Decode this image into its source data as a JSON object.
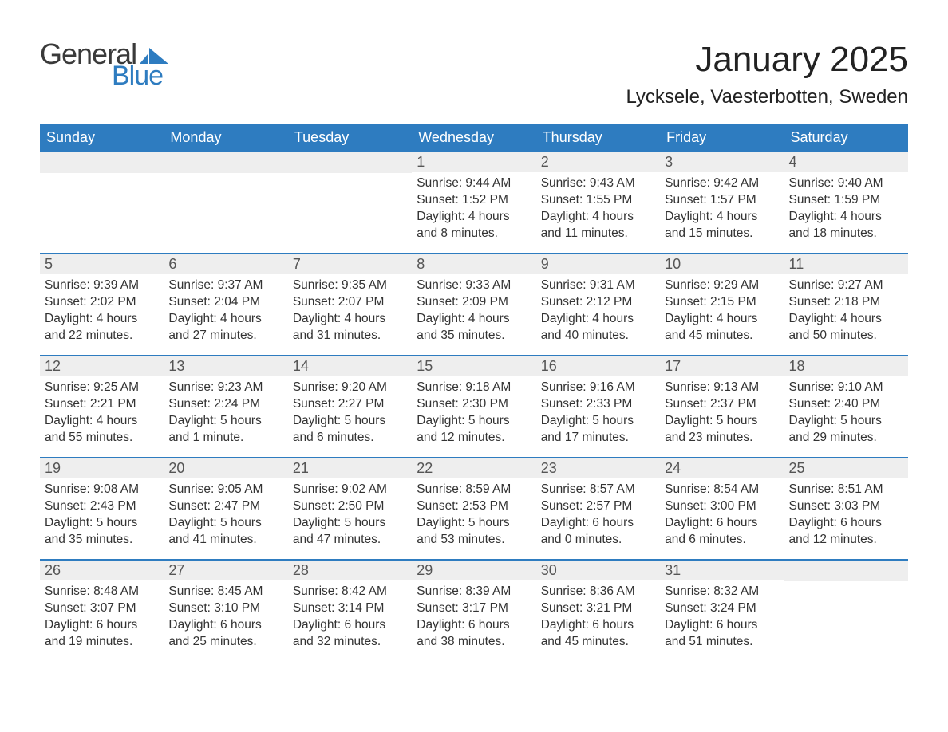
{
  "logo": {
    "word1": "General",
    "word2": "Blue",
    "mark_color": "#2e7cc0"
  },
  "title": "January 2025",
  "location": "Lycksele, Vaesterbotten, Sweden",
  "colors": {
    "header_bg": "#2e7cc0",
    "header_fg": "#ffffff",
    "daynum_bg": "#eeeeee",
    "daynum_fg": "#555555",
    "body_bg": "#ffffff",
    "text": "#333333",
    "rule": "#2e7cc0"
  },
  "typography": {
    "title_fontsize": 44,
    "location_fontsize": 24,
    "dow_fontsize": 18,
    "daynum_fontsize": 18,
    "body_fontsize": 15.5
  },
  "days_of_week": [
    "Sunday",
    "Monday",
    "Tuesday",
    "Wednesday",
    "Thursday",
    "Friday",
    "Saturday"
  ],
  "labels": {
    "sunrise": "Sunrise:",
    "sunset": "Sunset:",
    "daylight": "Daylight:"
  },
  "weeks": [
    [
      null,
      null,
      null,
      {
        "n": "1",
        "sunrise": "9:44 AM",
        "sunset": "1:52 PM",
        "daylight": "4 hours and 8 minutes."
      },
      {
        "n": "2",
        "sunrise": "9:43 AM",
        "sunset": "1:55 PM",
        "daylight": "4 hours and 11 minutes."
      },
      {
        "n": "3",
        "sunrise": "9:42 AM",
        "sunset": "1:57 PM",
        "daylight": "4 hours and 15 minutes."
      },
      {
        "n": "4",
        "sunrise": "9:40 AM",
        "sunset": "1:59 PM",
        "daylight": "4 hours and 18 minutes."
      }
    ],
    [
      {
        "n": "5",
        "sunrise": "9:39 AM",
        "sunset": "2:02 PM",
        "daylight": "4 hours and 22 minutes."
      },
      {
        "n": "6",
        "sunrise": "9:37 AM",
        "sunset": "2:04 PM",
        "daylight": "4 hours and 27 minutes."
      },
      {
        "n": "7",
        "sunrise": "9:35 AM",
        "sunset": "2:07 PM",
        "daylight": "4 hours and 31 minutes."
      },
      {
        "n": "8",
        "sunrise": "9:33 AM",
        "sunset": "2:09 PM",
        "daylight": "4 hours and 35 minutes."
      },
      {
        "n": "9",
        "sunrise": "9:31 AM",
        "sunset": "2:12 PM",
        "daylight": "4 hours and 40 minutes."
      },
      {
        "n": "10",
        "sunrise": "9:29 AM",
        "sunset": "2:15 PM",
        "daylight": "4 hours and 45 minutes."
      },
      {
        "n": "11",
        "sunrise": "9:27 AM",
        "sunset": "2:18 PM",
        "daylight": "4 hours and 50 minutes."
      }
    ],
    [
      {
        "n": "12",
        "sunrise": "9:25 AM",
        "sunset": "2:21 PM",
        "daylight": "4 hours and 55 minutes."
      },
      {
        "n": "13",
        "sunrise": "9:23 AM",
        "sunset": "2:24 PM",
        "daylight": "5 hours and 1 minute."
      },
      {
        "n": "14",
        "sunrise": "9:20 AM",
        "sunset": "2:27 PM",
        "daylight": "5 hours and 6 minutes."
      },
      {
        "n": "15",
        "sunrise": "9:18 AM",
        "sunset": "2:30 PM",
        "daylight": "5 hours and 12 minutes."
      },
      {
        "n": "16",
        "sunrise": "9:16 AM",
        "sunset": "2:33 PM",
        "daylight": "5 hours and 17 minutes."
      },
      {
        "n": "17",
        "sunrise": "9:13 AM",
        "sunset": "2:37 PM",
        "daylight": "5 hours and 23 minutes."
      },
      {
        "n": "18",
        "sunrise": "9:10 AM",
        "sunset": "2:40 PM",
        "daylight": "5 hours and 29 minutes."
      }
    ],
    [
      {
        "n": "19",
        "sunrise": "9:08 AM",
        "sunset": "2:43 PM",
        "daylight": "5 hours and 35 minutes."
      },
      {
        "n": "20",
        "sunrise": "9:05 AM",
        "sunset": "2:47 PM",
        "daylight": "5 hours and 41 minutes."
      },
      {
        "n": "21",
        "sunrise": "9:02 AM",
        "sunset": "2:50 PM",
        "daylight": "5 hours and 47 minutes."
      },
      {
        "n": "22",
        "sunrise": "8:59 AM",
        "sunset": "2:53 PM",
        "daylight": "5 hours and 53 minutes."
      },
      {
        "n": "23",
        "sunrise": "8:57 AM",
        "sunset": "2:57 PM",
        "daylight": "6 hours and 0 minutes."
      },
      {
        "n": "24",
        "sunrise": "8:54 AM",
        "sunset": "3:00 PM",
        "daylight": "6 hours and 6 minutes."
      },
      {
        "n": "25",
        "sunrise": "8:51 AM",
        "sunset": "3:03 PM",
        "daylight": "6 hours and 12 minutes."
      }
    ],
    [
      {
        "n": "26",
        "sunrise": "8:48 AM",
        "sunset": "3:07 PM",
        "daylight": "6 hours and 19 minutes."
      },
      {
        "n": "27",
        "sunrise": "8:45 AM",
        "sunset": "3:10 PM",
        "daylight": "6 hours and 25 minutes."
      },
      {
        "n": "28",
        "sunrise": "8:42 AM",
        "sunset": "3:14 PM",
        "daylight": "6 hours and 32 minutes."
      },
      {
        "n": "29",
        "sunrise": "8:39 AM",
        "sunset": "3:17 PM",
        "daylight": "6 hours and 38 minutes."
      },
      {
        "n": "30",
        "sunrise": "8:36 AM",
        "sunset": "3:21 PM",
        "daylight": "6 hours and 45 minutes."
      },
      {
        "n": "31",
        "sunrise": "8:32 AM",
        "sunset": "3:24 PM",
        "daylight": "6 hours and 51 minutes."
      },
      null
    ]
  ]
}
